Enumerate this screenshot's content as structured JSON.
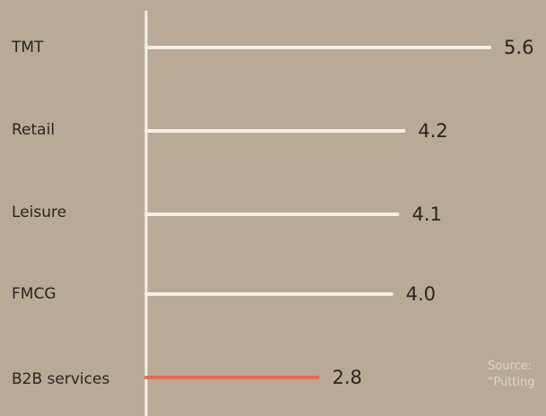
{
  "chart_data": {
    "type": "bar",
    "orientation": "horizontal",
    "categories": [
      "TMT",
      "Retail",
      "Leisure",
      "FMCG",
      "B2B services"
    ],
    "values": [
      5.6,
      4.2,
      4.1,
      4.0,
      2.8
    ],
    "value_labels": [
      "5.6",
      "4.2",
      "4.1",
      "4.0",
      "2.8"
    ],
    "highlight_category": "B2B services",
    "colors": {
      "background": "#b8aa95",
      "bar": "#f2efe9",
      "highlight": "#e8695a",
      "axis": "#f2efe9",
      "text": "#2a2520",
      "source": "#ddd5c8"
    },
    "grid": false,
    "legend": "none"
  },
  "source": {
    "line1": "Source:",
    "line2": "“Putting"
  }
}
